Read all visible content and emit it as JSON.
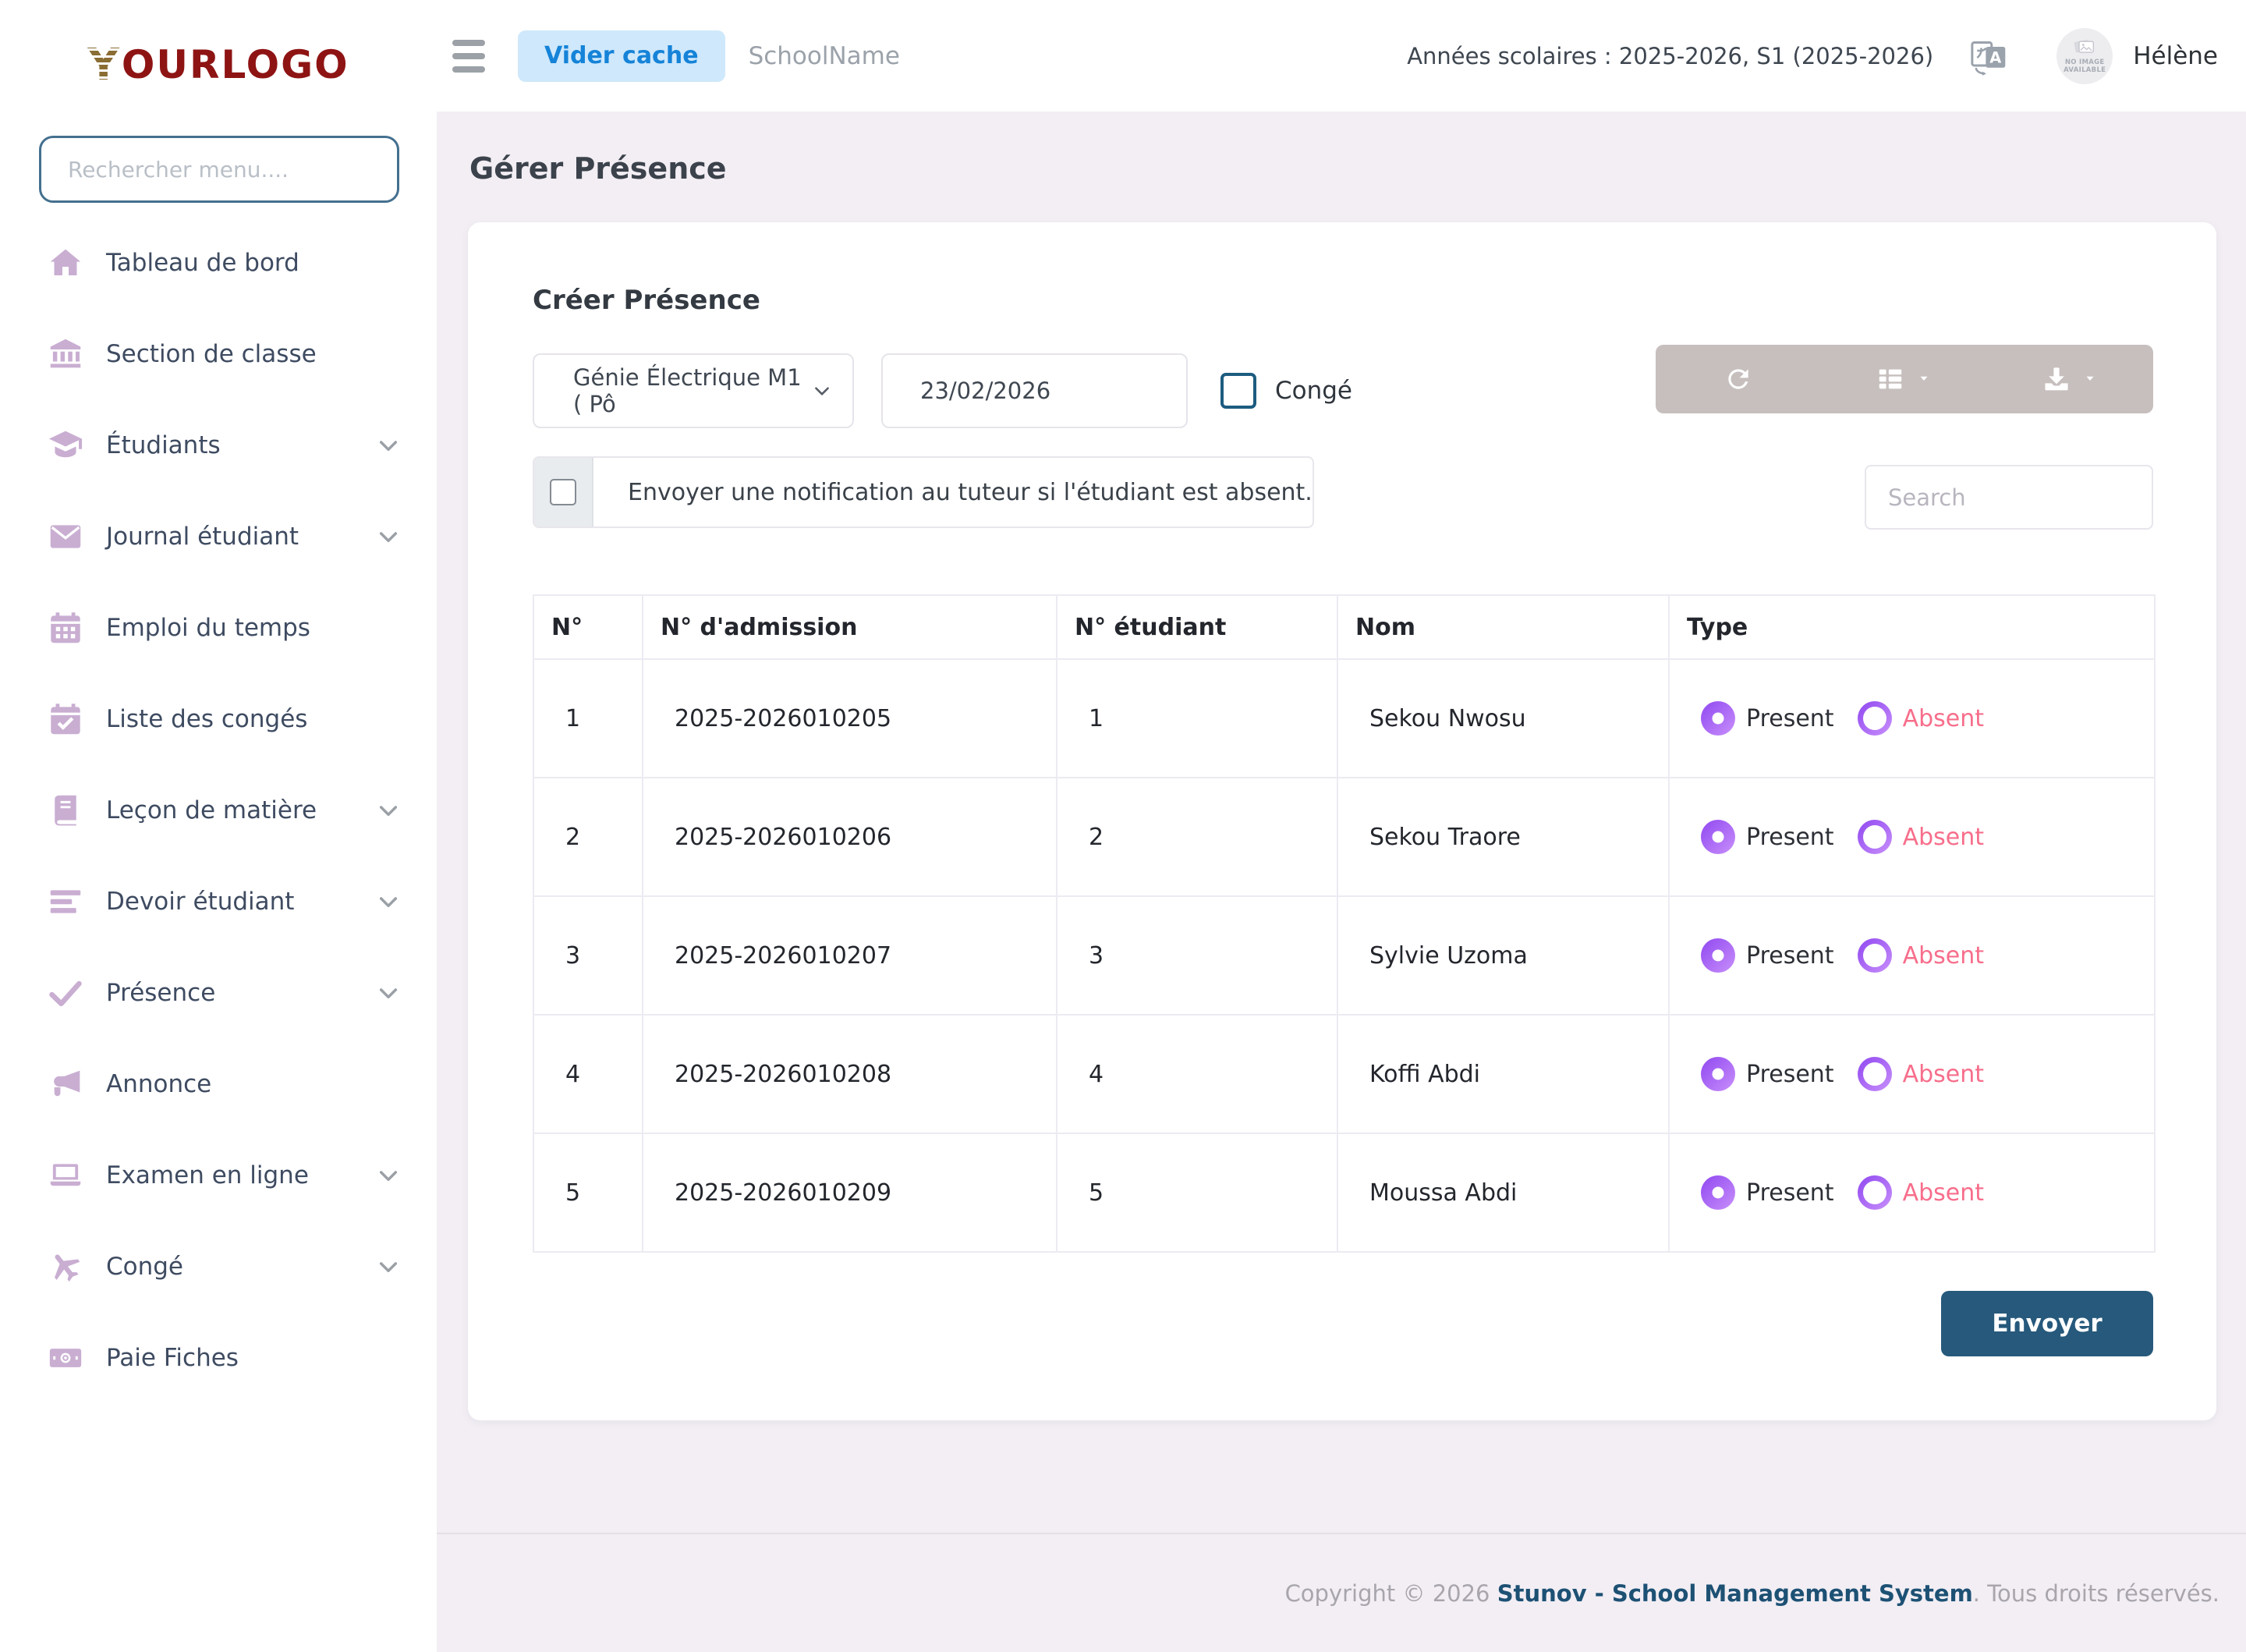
{
  "brand": {
    "logo_y": "Y",
    "logo_rest": "OURLOGO"
  },
  "sidebar": {
    "search_placeholder": "Rechercher menu....",
    "items": [
      {
        "label": "Tableau de bord",
        "icon": "home",
        "chevron": false
      },
      {
        "label": "Section de classe",
        "icon": "bank",
        "chevron": false
      },
      {
        "label": "Étudiants",
        "icon": "graduation-cap",
        "chevron": true
      },
      {
        "label": "Journal étudiant",
        "icon": "envelope",
        "chevron": true
      },
      {
        "label": "Emploi du temps",
        "icon": "calendar",
        "chevron": false
      },
      {
        "label": "Liste des congés",
        "icon": "calendar-check",
        "chevron": false
      },
      {
        "label": "Leçon de matière",
        "icon": "book",
        "chevron": true
      },
      {
        "label": "Devoir étudiant",
        "icon": "list",
        "chevron": true
      },
      {
        "label": "Présence",
        "icon": "check",
        "chevron": true
      },
      {
        "label": "Annonce",
        "icon": "megaphone",
        "chevron": false
      },
      {
        "label": "Examen en ligne",
        "icon": "laptop",
        "chevron": true
      },
      {
        "label": "Congé",
        "icon": "plane",
        "chevron": true
      },
      {
        "label": "Paie Fiches",
        "icon": "money",
        "chevron": false
      }
    ]
  },
  "topbar": {
    "clear_cache_label": "Vider cache",
    "school_name": "SchoolName",
    "school_years": "Années scolaires : 2025-2026, S1 (2025-2026)",
    "user_name": "Hélène",
    "avatar_placeholder": "NO IMAGE AVAILABLE"
  },
  "page": {
    "title": "Gérer Présence"
  },
  "card": {
    "title": "Créer Présence",
    "class_select_value": "Génie Électrique M1 ( Pô",
    "date_value": "23/02/2026",
    "conge_label": "Congé",
    "notify_label": "Envoyer une notification au tuteur si l'étudiant est absent.",
    "search_placeholder": "Search",
    "submit_label": "Envoyer"
  },
  "table": {
    "headers": [
      "N°",
      "N° d'admission",
      "N° étudiant",
      "Nom",
      "Type"
    ],
    "present_label": "Present",
    "absent_label": "Absent",
    "rows": [
      {
        "n": "1",
        "admission": "2025-2026010205",
        "student_no": "1",
        "name": "Sekou Nwosu",
        "type": "present"
      },
      {
        "n": "2",
        "admission": "2025-2026010206",
        "student_no": "2",
        "name": "Sekou Traore",
        "type": "present"
      },
      {
        "n": "3",
        "admission": "2025-2026010207",
        "student_no": "3",
        "name": "Sylvie Uzoma",
        "type": "present"
      },
      {
        "n": "4",
        "admission": "2025-2026010208",
        "student_no": "4",
        "name": "Koffi Abdi",
        "type": "present"
      },
      {
        "n": "5",
        "admission": "2025-2026010209",
        "student_no": "5",
        "name": "Moussa Abdi",
        "type": "present"
      }
    ]
  },
  "footer": {
    "copyright_prefix": "Copyright © 2026 ",
    "brand_link": "Stunov - School Management System",
    "copyright_suffix": ". Tous droits réservés."
  },
  "colors": {
    "main_background": "#f2eef4",
    "accent_blue": "#1583d8",
    "clear_cache_bg": "#cfe8fb",
    "sidebar_icon": "#c9aed2",
    "radio_purple_start": "#9048f0",
    "radio_purple_end": "#c88ffb",
    "absent_pink": "#f76e8b",
    "submit_button": "#26597b",
    "checkbox_teal": "#1d5c80",
    "toolbar_gray": "#c6bfbe",
    "footer_link": "#1d5174"
  }
}
